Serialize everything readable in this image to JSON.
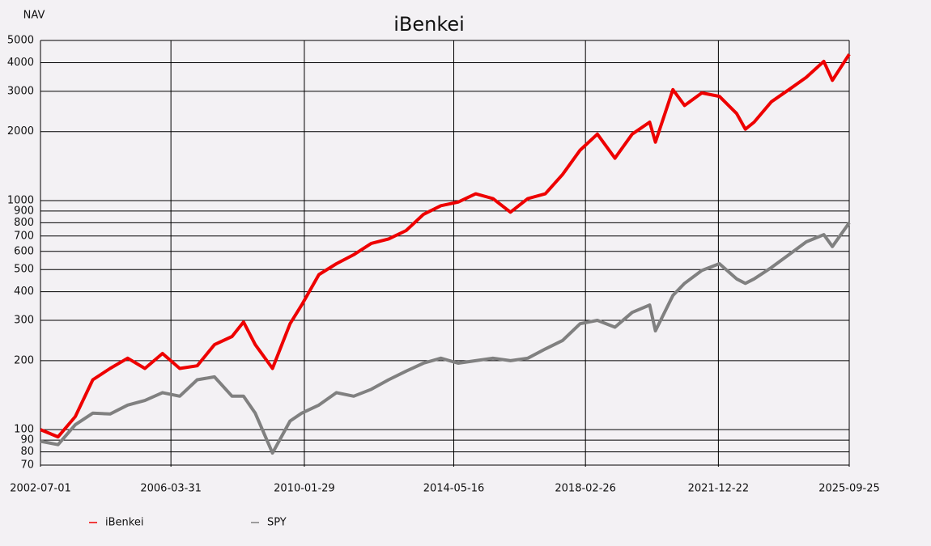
{
  "chart_data": {
    "type": "line",
    "title": "iBenkei",
    "y_label": "NAV",
    "log_y": true,
    "grid": true,
    "legend": "bottom",
    "x": [
      "2002-07-01",
      "2003-01-01",
      "2003-07-01",
      "2004-01-01",
      "2004-07-01",
      "2005-01-01",
      "2005-07-01",
      "2006-01-01",
      "2006-07-01",
      "2007-01-01",
      "2007-07-01",
      "2008-01-01",
      "2008-05-01",
      "2008-09-01",
      "2009-03-01",
      "2009-09-01",
      "2010-01-01",
      "2010-07-01",
      "2011-01-01",
      "2011-07-01",
      "2012-01-01",
      "2012-07-01",
      "2013-01-01",
      "2013-07-01",
      "2014-01-01",
      "2014-07-01",
      "2015-01-01",
      "2015-07-01",
      "2016-01-01",
      "2016-07-01",
      "2017-01-01",
      "2017-07-01",
      "2018-01-01",
      "2018-07-01",
      "2019-01-01",
      "2019-07-01",
      "2020-01-01",
      "2020-03-01",
      "2020-09-01",
      "2021-01-01",
      "2021-07-01",
      "2022-01-01",
      "2022-07-01",
      "2022-10-01",
      "2023-01-01",
      "2023-07-01",
      "2024-01-01",
      "2024-07-01",
      "2025-01-01",
      "2025-04-01",
      "2025-09-25"
    ],
    "series": [
      {
        "name": "iBenkei",
        "color": "#ee0000",
        "values": [
          100,
          93,
          114,
          165,
          185,
          205,
          185,
          215,
          185,
          190,
          235,
          255,
          295,
          235,
          185,
          290,
          350,
          475,
          530,
          580,
          650,
          680,
          740,
          870,
          950,
          985,
          1070,
          1020,
          890,
          1020,
          1070,
          1300,
          1660,
          1950,
          1530,
          1950,
          2200,
          1800,
          3050,
          2600,
          2950,
          2850,
          2400,
          2050,
          2200,
          2700,
          3050,
          3450,
          4050,
          3350,
          4350
        ]
      },
      {
        "name": "SPY",
        "color": "#808080",
        "values": [
          89,
          86,
          105,
          118,
          117,
          128,
          134,
          145,
          140,
          165,
          170,
          140,
          140,
          118,
          79,
          109,
          118,
          128,
          145,
          140,
          150,
          165,
          180,
          195,
          205,
          195,
          200,
          205,
          200,
          205,
          225,
          245,
          290,
          300,
          280,
          325,
          350,
          270,
          385,
          435,
          495,
          530,
          455,
          435,
          455,
          510,
          580,
          660,
          710,
          630,
          800
        ]
      }
    ],
    "xlim": [
      "2002-07-01",
      "2025-09-25"
    ],
    "xticks": [
      "2002-07-01",
      "2006-03-31",
      "2010-01-29",
      "2014-05-16",
      "2018-02-26",
      "2021-12-22",
      "2025-09-25"
    ],
    "ylim": [
      70,
      5000
    ],
    "yticks": [
      70,
      80,
      90,
      100,
      200,
      300,
      400,
      500,
      600,
      700,
      800,
      900,
      1000,
      2000,
      3000,
      4000,
      5000
    ]
  }
}
